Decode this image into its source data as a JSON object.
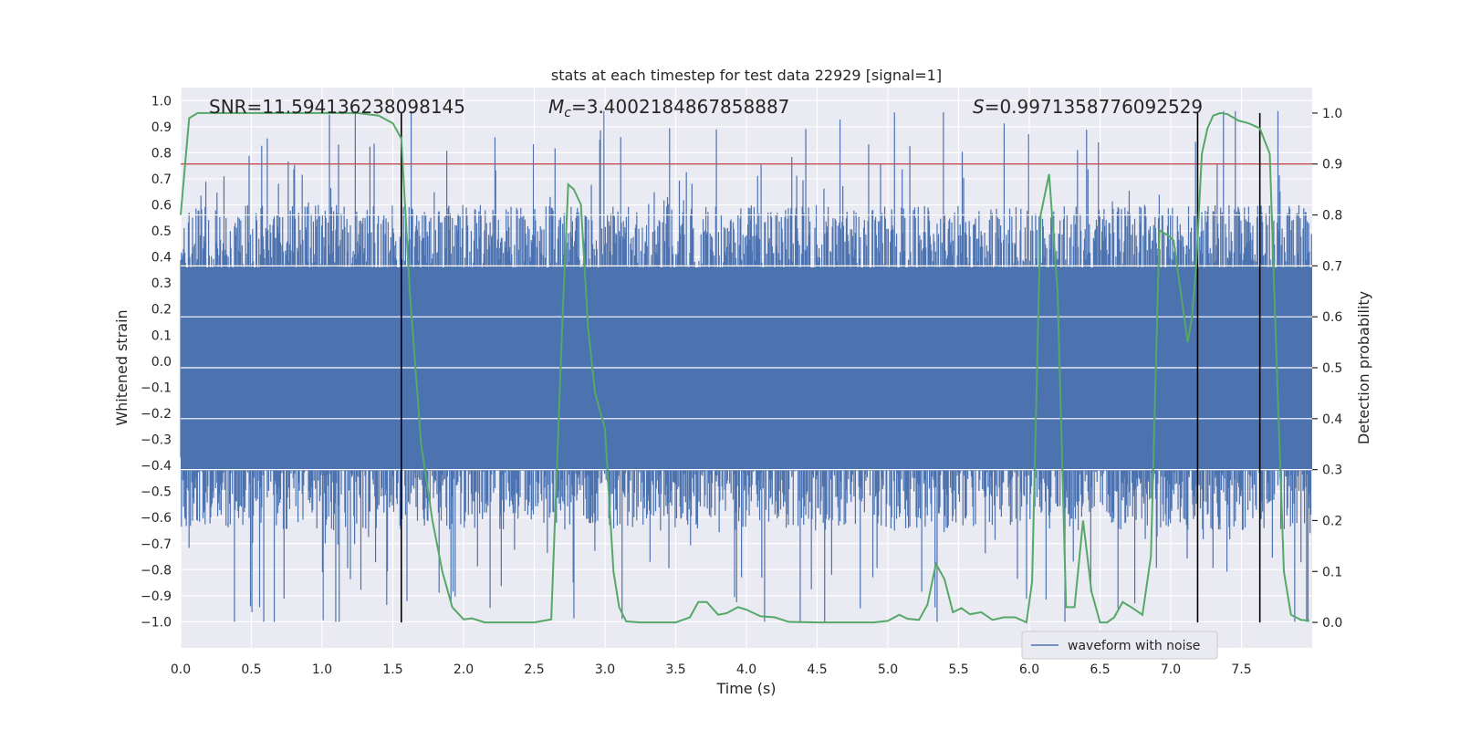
{
  "chart_data": {
    "type": "line",
    "title": "stats at each timestep for test data 22929 [signal=1]",
    "xlabel": "Time (s)",
    "ylabel_left": "Whitened strain",
    "ylabel_right": "Detection probability",
    "xlim": [
      0.0,
      8.0
    ],
    "ylim_left": [
      -1.1,
      1.05
    ],
    "ylim_right": [
      -0.05,
      1.05
    ],
    "x_ticks": [
      0.0,
      0.5,
      1.0,
      1.5,
      2.0,
      2.5,
      3.0,
      3.5,
      4.0,
      4.5,
      5.0,
      5.5,
      6.0,
      6.5,
      7.0,
      7.5
    ],
    "x_tick_labels": [
      "0.0",
      "0.5",
      "1.0",
      "1.5",
      "2.0",
      "2.5",
      "3.0",
      "3.5",
      "4.0",
      "4.5",
      "5.0",
      "5.5",
      "6.0",
      "6.5",
      "7.0",
      "7.5"
    ],
    "y_left_ticks": [
      1.0,
      0.9,
      0.8,
      0.7,
      0.6,
      0.5,
      0.4,
      0.3,
      0.2,
      0.1,
      0.0,
      -0.1,
      -0.2,
      -0.3,
      -0.4,
      -0.5,
      -0.6,
      -0.7,
      -0.8,
      -0.9,
      -1.0
    ],
    "y_left_tick_labels": [
      "1.0",
      "0.9",
      "0.8",
      "0.7",
      "0.6",
      "0.5",
      "0.4",
      "0.3",
      "0.2",
      "0.1",
      "0.0",
      "−0.1",
      "−0.2",
      "−0.3",
      "−0.4",
      "−0.5",
      "−0.6",
      "−0.7",
      "−0.8",
      "−0.9",
      "−1.0"
    ],
    "y_right_ticks": [
      1.0,
      0.9,
      0.8,
      0.7,
      0.6,
      0.5,
      0.4,
      0.3,
      0.2,
      0.1,
      0.0
    ],
    "y_right_tick_labels": [
      "1.0",
      "0.9",
      "0.8",
      "0.7",
      "0.6",
      "0.5",
      "0.4",
      "0.3",
      "0.2",
      "0.1",
      "0.0"
    ],
    "annotations": [
      {
        "text": "SNR=11.594136238098145",
        "x": 0.2
      },
      {
        "prefix": "M",
        "sub": "c",
        "text": "=3.4002184867858887",
        "x": 2.6
      },
      {
        "prefix": "S",
        "text": "=0.9971358776092529",
        "x": 5.6
      }
    ],
    "threshold_right": 0.9,
    "vertical_lines_x": [
      1.56,
      7.19,
      7.63
    ],
    "legend": {
      "label": "waveform with noise",
      "placement": "lower-right"
    },
    "series": [
      {
        "name": "waveform with noise",
        "axis": "left",
        "color": "#4c72b0",
        "kind": "noise-band",
        "typical_range": [
          -0.45,
          0.4
        ],
        "peak_range": [
          -1.0,
          0.96
        ]
      },
      {
        "name": "detection probability",
        "axis": "right",
        "color": "#55a868",
        "x": [
          0.0,
          0.06,
          0.12,
          0.25,
          0.5,
          0.75,
          1.0,
          1.25,
          1.4,
          1.5,
          1.56,
          1.62,
          1.7,
          1.78,
          1.85,
          1.92,
          2.0,
          2.06,
          2.15,
          2.3,
          2.5,
          2.62,
          2.7,
          2.74,
          2.78,
          2.83,
          2.88,
          2.93,
          3.0,
          3.06,
          3.1,
          3.15,
          3.25,
          3.35,
          3.5,
          3.6,
          3.66,
          3.72,
          3.8,
          3.86,
          3.94,
          4.0,
          4.1,
          4.2,
          4.3,
          4.5,
          4.7,
          4.9,
          5.0,
          5.08,
          5.14,
          5.22,
          5.28,
          5.34,
          5.4,
          5.46,
          5.52,
          5.58,
          5.66,
          5.74,
          5.82,
          5.9,
          5.98,
          6.02,
          6.08,
          6.14,
          6.2,
          6.26,
          6.32,
          6.38,
          6.44,
          6.5,
          6.55,
          6.6,
          6.66,
          6.72,
          6.8,
          6.86,
          6.92,
          6.98,
          7.02,
          7.08,
          7.12,
          7.15,
          7.18,
          7.22,
          7.26,
          7.3,
          7.35,
          7.4,
          7.48,
          7.55,
          7.63,
          7.7,
          7.75,
          7.8,
          7.85,
          7.92,
          7.98
        ],
        "values": [
          0.8,
          0.99,
          1.0,
          1.0,
          1.0,
          1.0,
          1.0,
          1.0,
          0.995,
          0.98,
          0.95,
          0.65,
          0.35,
          0.2,
          0.1,
          0.03,
          0.006,
          0.008,
          0.0,
          0.0,
          0.0,
          0.006,
          0.6,
          0.86,
          0.85,
          0.82,
          0.58,
          0.45,
          0.38,
          0.1,
          0.03,
          0.002,
          0.0,
          0.0,
          0.0,
          0.01,
          0.04,
          0.04,
          0.015,
          0.018,
          0.03,
          0.025,
          0.012,
          0.01,
          0.001,
          0.0,
          0.0,
          0.0,
          0.003,
          0.015,
          0.007,
          0.005,
          0.035,
          0.115,
          0.085,
          0.02,
          0.028,
          0.016,
          0.02,
          0.005,
          0.01,
          0.01,
          0.0,
          0.08,
          0.8,
          0.88,
          0.65,
          0.03,
          0.03,
          0.2,
          0.06,
          0.0,
          0.0,
          0.01,
          0.04,
          0.03,
          0.015,
          0.13,
          0.77,
          0.76,
          0.75,
          0.63,
          0.55,
          0.6,
          0.7,
          0.92,
          0.97,
          0.995,
          1.0,
          0.998,
          0.985,
          0.98,
          0.97,
          0.92,
          0.5,
          0.1,
          0.015,
          0.005,
          0.003
        ]
      }
    ]
  }
}
